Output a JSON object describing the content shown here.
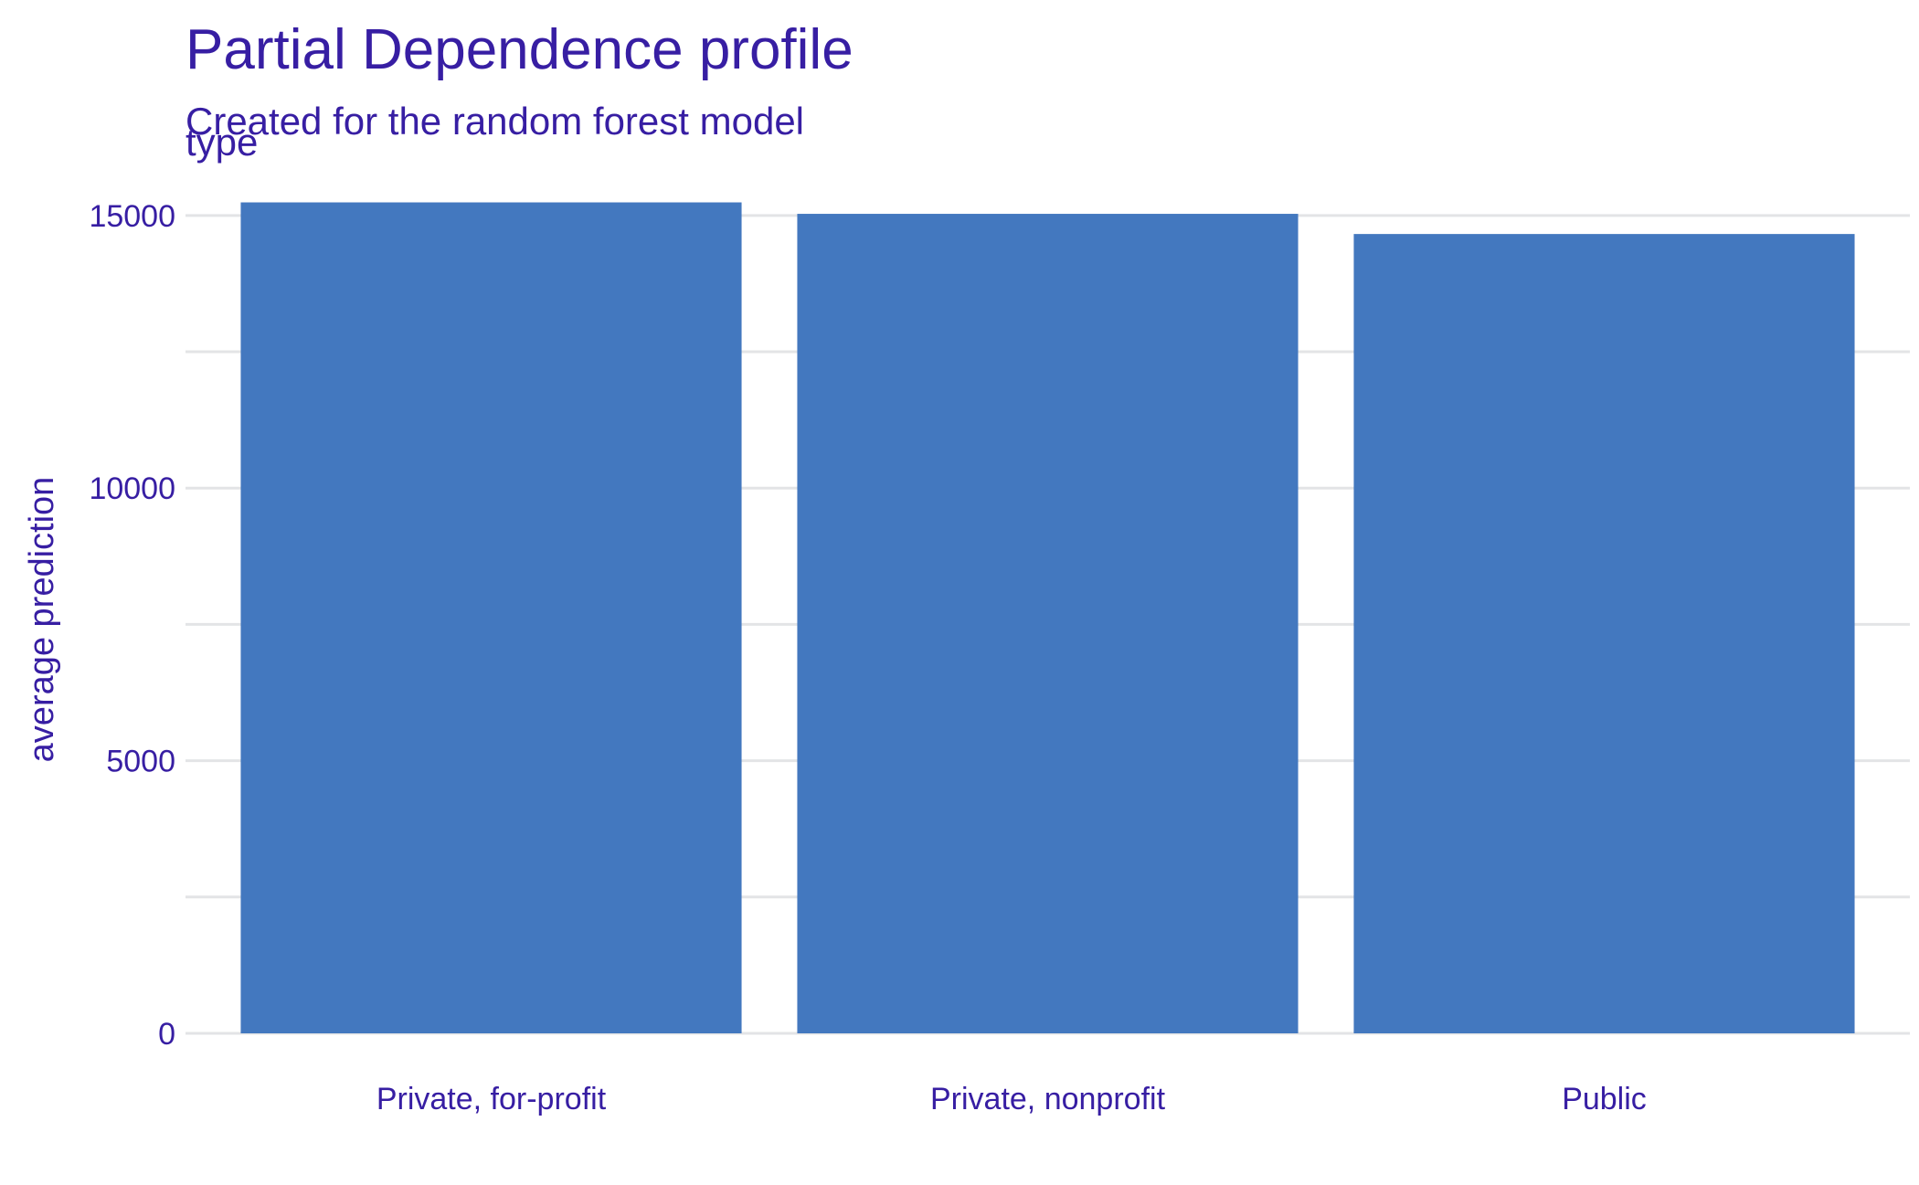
{
  "chart_data": {
    "type": "bar",
    "title": "Partial Dependence profile",
    "subtitle": "Created for the random forest model",
    "facet_label": "type",
    "xlabel": "",
    "ylabel": "average prediction",
    "categories": [
      "Private, for-profit",
      "Private, nonprofit",
      "Public"
    ],
    "values": [
      15240,
      15030,
      14660
    ],
    "ylim": [
      0,
      15500
    ],
    "yticks": [
      0,
      5000,
      10000,
      15000
    ],
    "yticks_minor": [
      2500,
      7500,
      12500
    ],
    "ytick_labels": [
      "0",
      "5000",
      "10000",
      "15000"
    ],
    "grid": true,
    "legend": "none",
    "bar_color": "#4378BF",
    "text_color": "#371EA3",
    "grid_color": "#E3E4E6"
  }
}
